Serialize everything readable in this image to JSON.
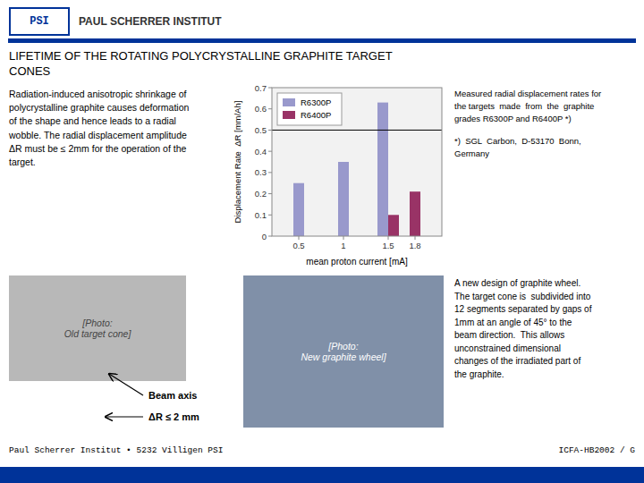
{
  "logo": "PSI",
  "institute": "PAUL SCHERRER INSTITUT",
  "title_lines": [
    "LIFETIME OF THE ROTATING POLYCRYSTALLINE GRAPHITE TARGET",
    "CONES"
  ],
  "intro": "Radiation-induced anisotropic shrinkage of\npolycrystalline graphite causes deformation\nof the shape and hence leads to a radial\nwobble. The radial displacement amplitude\nΔR must be ≤ 2mm for the operation of the\ntarget.",
  "notes": [
    "Measured radial displacement rates for\nthe targets  made  from  the  graphite\ngrades R6300P and R6400P *)",
    "*)  SGL  Carbon,  D-53170  Bonn,\nGermany"
  ],
  "photo_captions": [
    "[Photo:\nOld target cone]",
    "[Photo:\nNew graphite wheel]"
  ],
  "annotations": [
    "Beam axis",
    "ΔR ≤ 2 mm"
  ],
  "new_design": "A new design of graphite wheel.\nThe target cone is  subdivided into\n12 segments separated by gaps of\n1mm at an angle of 45° to the\nbeam direction.  This allows\nunconstrained dimensional\nchanges of the irradiated part of\nthe graphite.",
  "footer_left": "Paul Scherrer Institut • 5232 Villigen PSI",
  "footer_right": "ICFA-HB2002 / G",
  "chart_data": {
    "type": "bar",
    "x_label": "mean proton current [mA]",
    "y_label": "Displacement Rate  ΔR [mm/Ah]",
    "x": [
      0.5,
      1.0,
      1.5,
      1.8
    ],
    "series": [
      {
        "name": "R6300P",
        "color": "#9999cc",
        "values": [
          0.25,
          0.35,
          0.63,
          null
        ]
      },
      {
        "name": "R6400P",
        "color": "#993366",
        "values": [
          null,
          null,
          0.1,
          0.21
        ]
      }
    ],
    "xlim": [
      0.2,
      2.1
    ],
    "xticks": [
      0.5,
      1,
      1.5,
      1.8
    ],
    "ylim": [
      0,
      0.7
    ],
    "yticks": [
      0,
      0.1,
      0.2,
      0.3,
      0.4,
      0.5,
      0.6,
      0.7
    ],
    "reference_line": 0.5,
    "legend": "upper left",
    "grid": false
  }
}
